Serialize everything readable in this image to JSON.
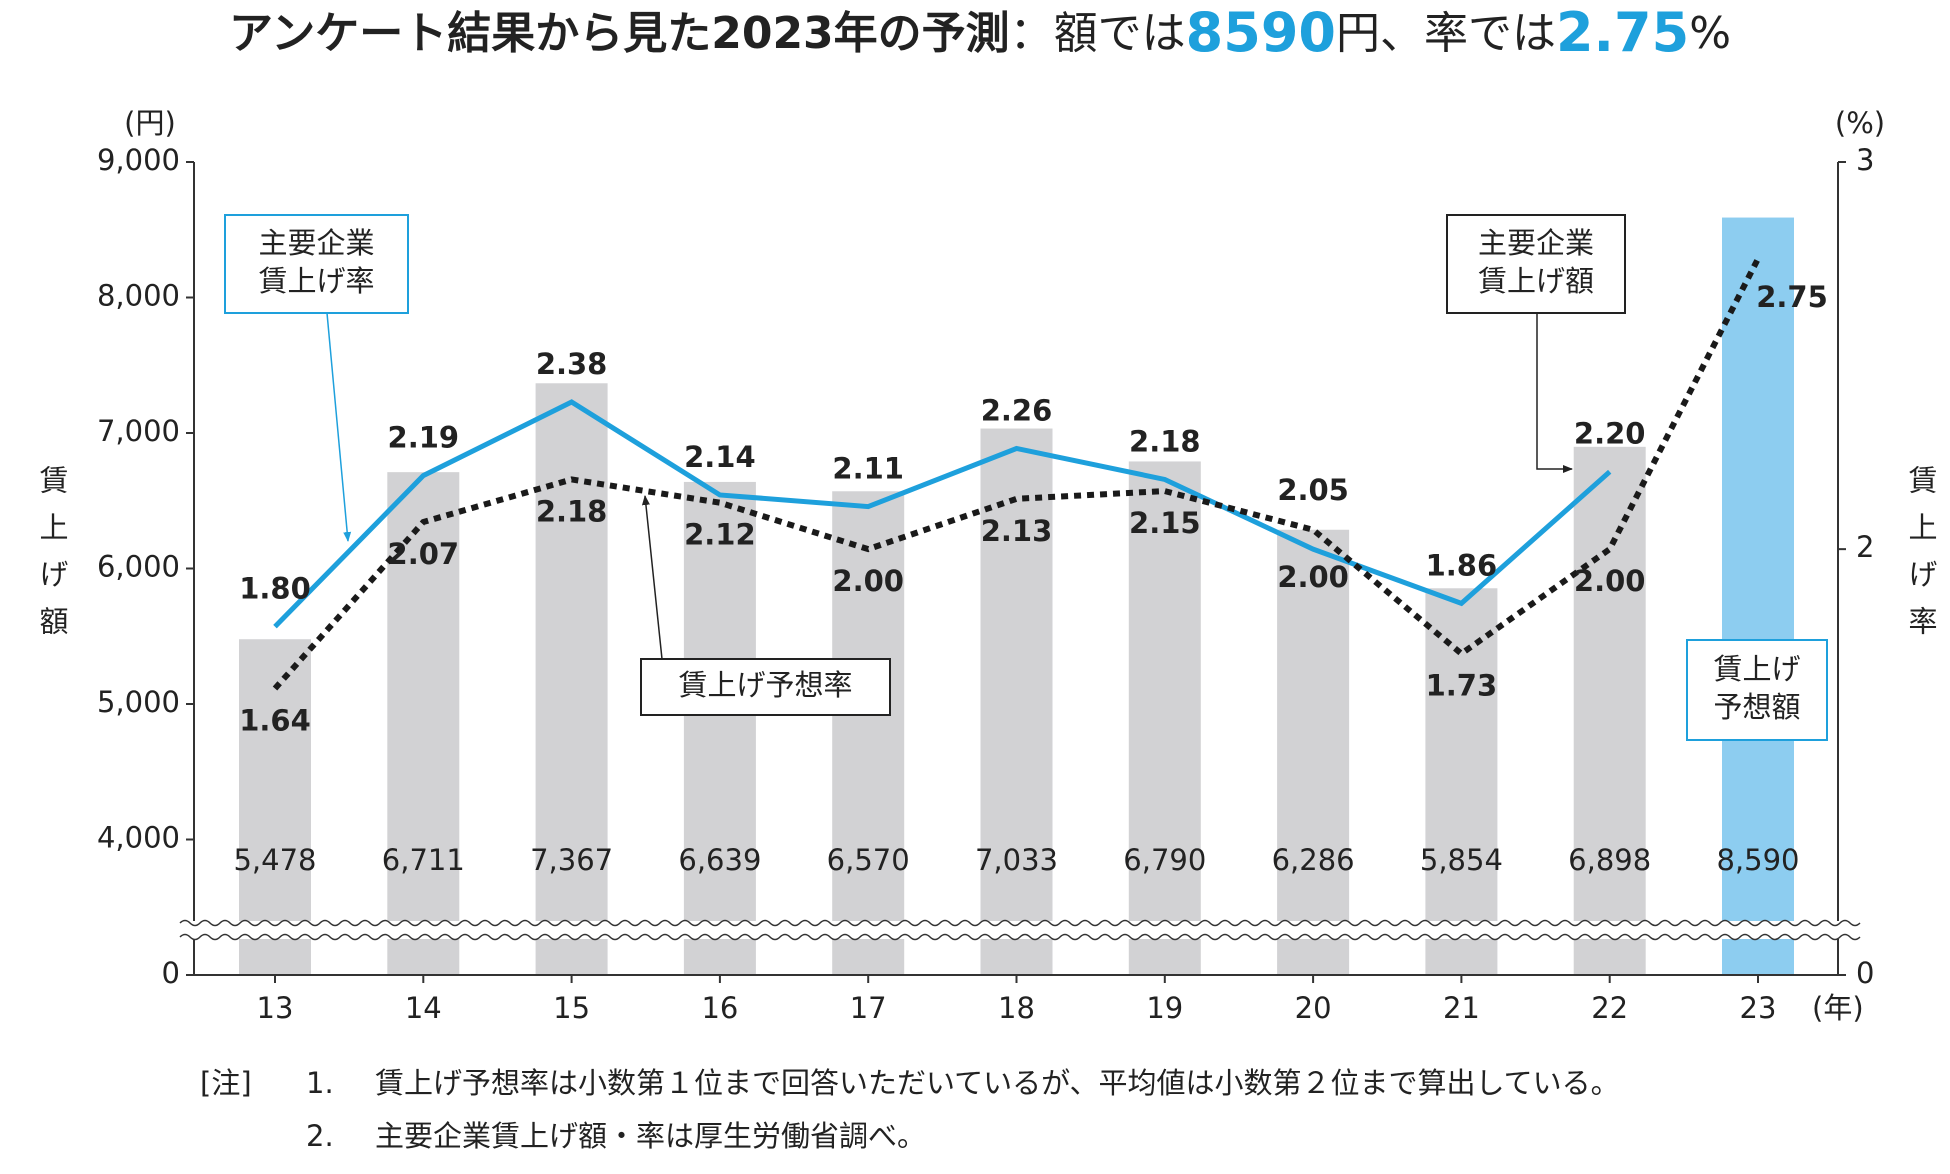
{
  "chart_data": {
    "type": "bar-line",
    "title": [
      "アンケート結果から見た2023年の予測",
      "：額では",
      "8590",
      "円、率では",
      "2.75",
      "%"
    ],
    "categories": [
      "13",
      "14",
      "15",
      "16",
      "17",
      "18",
      "19",
      "20",
      "21",
      "22",
      "23"
    ],
    "x_unit": "(年)",
    "y_label": "賃上げ額",
    "y_unit": "(円)",
    "y2_label": "賃上げ率",
    "y2_unit": "(%)",
    "ylim": [
      0,
      9000
    ],
    "axis_break": [
      0,
      3000
    ],
    "yticks": [
      0,
      {
        "value": 4000,
        "label": "4,000"
      },
      {
        "value": 5000,
        "label": "5,000"
      },
      {
        "value": 6000,
        "label": "6,000"
      },
      {
        "value": 7000,
        "label": "7,000"
      },
      {
        "value": 8000,
        "label": "8,000"
      },
      {
        "value": 9000,
        "label": "9,000"
      }
    ],
    "y2lim": [
      0,
      3
    ],
    "y2_break": [
      0,
      0.9
    ],
    "y2ticks": [
      0,
      2,
      3
    ],
    "series": [
      {
        "name": [
          "主要企業",
          "賃上げ額"
        ],
        "type": "bar",
        "axis": "y",
        "color": "#d2d2d4",
        "values": [
          5478,
          6711,
          7367,
          6639,
          6570,
          7033,
          6790,
          6286,
          5854,
          6898,
          null
        ],
        "value_labels": [
          "5,478",
          "6,711",
          "7,367",
          "6,639",
          "6,570",
          "7,033",
          "6,790",
          "6,286",
          "5,854",
          "6,898",
          null
        ]
      },
      {
        "name": [
          "賃上げ",
          "予想額"
        ],
        "type": "bar",
        "axis": "y",
        "color": "#8dcdf0",
        "values": [
          null,
          null,
          null,
          null,
          null,
          null,
          null,
          null,
          null,
          null,
          8590
        ],
        "value_labels": [
          null,
          null,
          null,
          null,
          null,
          null,
          null,
          null,
          null,
          null,
          "8,590"
        ]
      },
      {
        "name": [
          "主要企業",
          "賃上げ率"
        ],
        "type": "line",
        "axis": "y2",
        "color": "#1ea0dc",
        "dashed": false,
        "values": [
          1.8,
          2.19,
          2.38,
          2.14,
          2.11,
          2.26,
          2.18,
          2.0,
          1.86,
          2.2,
          null
        ],
        "value_labels": [
          "1.80",
          "2.19",
          "2.38",
          "2.14",
          "2.11",
          "2.26",
          "2.18",
          "2.00",
          "1.86",
          "2.20",
          null
        ]
      },
      {
        "name": [
          "賃上げ予想率"
        ],
        "type": "line",
        "axis": "y2",
        "color": "#1a1a1a",
        "dashed": true,
        "values": [
          1.64,
          2.07,
          2.18,
          2.12,
          2.0,
          2.13,
          2.15,
          2.05,
          1.73,
          2.0,
          2.75
        ],
        "value_labels": [
          "1.64",
          "2.07",
          "2.18",
          "2.12",
          "2.00",
          "2.13",
          "2.15",
          "2.05",
          "1.73",
          "2.00",
          "2.75"
        ]
      }
    ],
    "notes_label": "[注]",
    "notes": [
      {
        "number": "1.",
        "text": "賃上げ予想率は小数第１位まで回答いただいているが、平均値は小数第２位まで算出している。"
      },
      {
        "number": "2.",
        "text": "主要企業賃上げ額・率は厚生労働省調べ。"
      }
    ]
  }
}
